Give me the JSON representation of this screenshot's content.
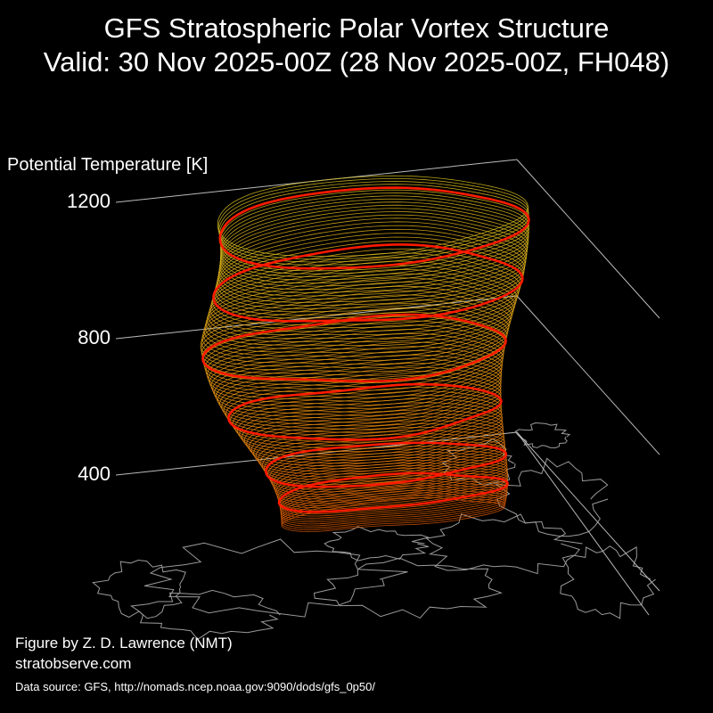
{
  "title": {
    "line1": "GFS Stratospheric Polar Vortex Structure",
    "line2": "Valid: 30 Nov 2025-00Z  (28 Nov 2025-00Z, FH048)"
  },
  "chart_data": {
    "type": "3d-isosurface",
    "zlabel": "Potential Temperature [K]",
    "zticks": [
      400,
      800,
      1200
    ],
    "highlighted_levels_K": [
      450,
      550,
      700,
      850,
      1000,
      1150
    ],
    "colors": {
      "background": "#000000",
      "low": "#e05a00",
      "mid": "#f09a10",
      "high": "#d8c020",
      "highlight": "#ff1a00",
      "axis": "#bbbbbb",
      "coastline": "#9a9a9a"
    }
  },
  "credits": {
    "line1": "Figure by Z. D. Lawrence (NMT)",
    "line2": "stratobserve.com",
    "line3": "Data source: GFS, http://nomads.ncep.noaa.gov:9090/dods/gfs_0p50/"
  }
}
